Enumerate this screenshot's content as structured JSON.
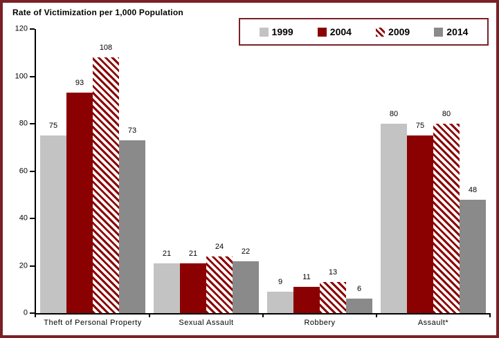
{
  "chart_data": {
    "type": "bar",
    "title": "Rate of Victimization per 1,000 Population",
    "categories": [
      "Theft of Personal Property",
      "Sexual Assault",
      "Robbery",
      "Assault*"
    ],
    "series": [
      {
        "name": "1999",
        "color": "#c3c3c3",
        "pattern": "solid",
        "values": [
          75,
          21,
          9,
          80
        ]
      },
      {
        "name": "2004",
        "color": "#8b0000",
        "pattern": "solid",
        "values": [
          93,
          21,
          11,
          75
        ]
      },
      {
        "name": "2009",
        "color": "#8b0000",
        "pattern": "hatch",
        "hatch_background": "#ffffff",
        "values": [
          108,
          24,
          13,
          80
        ]
      },
      {
        "name": "2014",
        "color": "#8a8a8a",
        "pattern": "solid",
        "values": [
          73,
          22,
          6,
          48
        ]
      }
    ],
    "ylim": [
      0,
      120
    ],
    "yticks": [
      0,
      20,
      40,
      60,
      80,
      100,
      120
    ],
    "grid": false,
    "legend_position": "top-right",
    "frame_color": "#7a2026",
    "axis_color": "#000000"
  }
}
